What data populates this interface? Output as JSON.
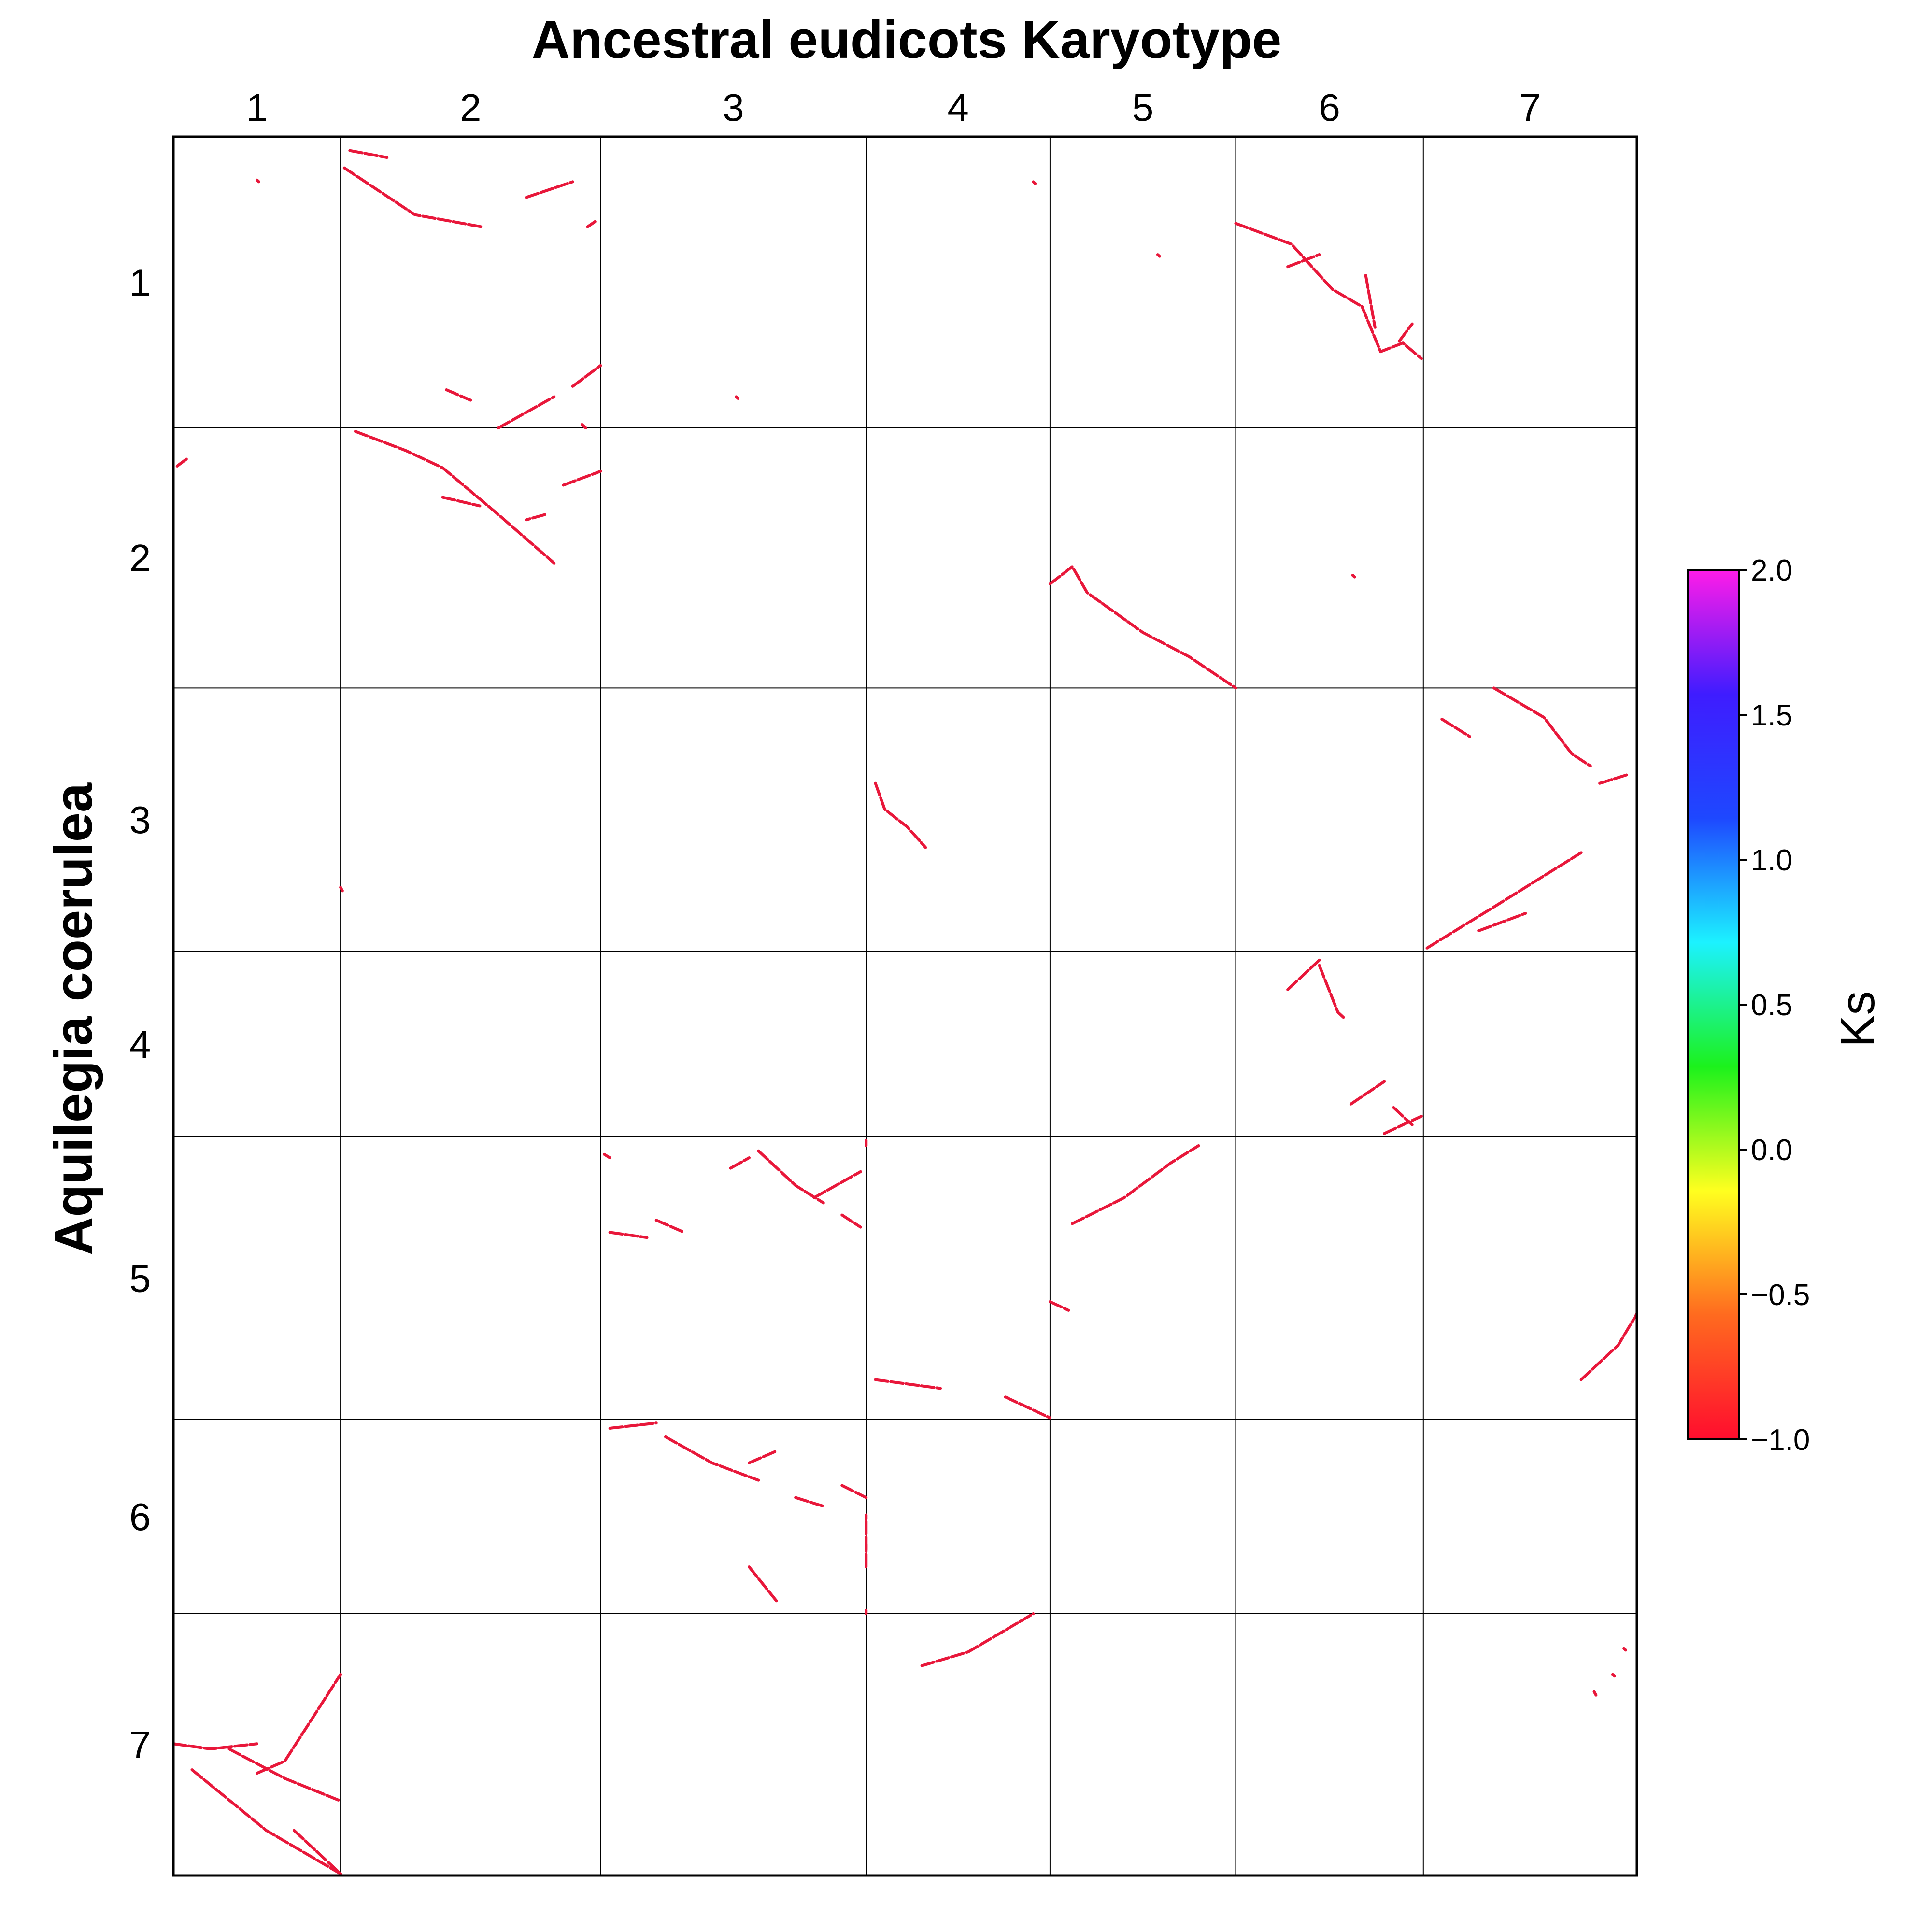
{
  "chart_data": {
    "type": "scatter",
    "title": "Ancestral eudicots Karyotype",
    "xlabel": "Ancestral eudicots Karyotype",
    "ylabel": "Aquilegia coerulea",
    "x_chromosomes": [
      "1",
      "2",
      "3",
      "4",
      "5",
      "6",
      "7"
    ],
    "y_chromosomes": [
      "1",
      "2",
      "3",
      "4",
      "5",
      "6",
      "7"
    ],
    "x_sizes": [
      90,
      140,
      143,
      99,
      100,
      101,
      115
    ],
    "y_sizes": [
      168,
      150,
      152,
      107,
      163,
      112,
      151
    ],
    "grid": true,
    "colorbar": {
      "label": "Ks",
      "range": [
        -1.0,
        2.0
      ],
      "ticks": [
        2.0,
        1.5,
        1.0,
        0.5,
        0.0,
        -0.5,
        -1.0
      ],
      "tick_labels": [
        "2.0",
        "1.5",
        "1.0",
        "0.5",
        "0.0",
        "−0.5",
        "−1.0"
      ],
      "colormap": [
        "#ff0d2e",
        "#ff6a1f",
        "#ffff1f",
        "#1cf21c",
        "#1cf2ff",
        "#1e48ff",
        "#3f1cff",
        "#ff1ce8"
      ]
    },
    "dot_color": "#e8173a",
    "ks_value_of_dots": -1.0,
    "synteny_segments": [
      {
        "cx": "1",
        "cy": "1",
        "points": [
          [
            45,
            25
          ],
          [
            46,
            26
          ]
        ]
      },
      {
        "cx": "2",
        "cy": "1",
        "points": [
          [
            2,
            18
          ],
          [
            40,
            45
          ],
          [
            76,
            52
          ]
        ]
      },
      {
        "cx": "2",
        "cy": "1",
        "points": [
          [
            5,
            8
          ],
          [
            25,
            12
          ]
        ]
      },
      {
        "cx": "2",
        "cy": "1",
        "points": [
          [
            100,
            35
          ],
          [
            125,
            26
          ]
        ]
      },
      {
        "cx": "2",
        "cy": "1",
        "points": [
          [
            133,
            52
          ],
          [
            137,
            49
          ]
        ]
      },
      {
        "cx": "2",
        "cy": "1",
        "points": [
          [
            57,
            146
          ],
          [
            70,
            152
          ]
        ]
      },
      {
        "cx": "2",
        "cy": "1",
        "points": [
          [
            85,
            168
          ],
          [
            115,
            150
          ]
        ]
      },
      {
        "cx": "2",
        "cy": "1",
        "points": [
          [
            125,
            144
          ],
          [
            140,
            132
          ]
        ]
      },
      {
        "cx": "2",
        "cy": "1",
        "points": [
          [
            130,
            166
          ],
          [
            132,
            168
          ]
        ]
      },
      {
        "cx": "3",
        "cy": "1",
        "points": [
          [
            73,
            150
          ],
          [
            74,
            151
          ]
        ]
      },
      {
        "cx": "4",
        "cy": "1",
        "points": [
          [
            90,
            26
          ],
          [
            91,
            27
          ]
        ]
      },
      {
        "cx": "5",
        "cy": "1",
        "points": [
          [
            58,
            68
          ],
          [
            59,
            69
          ]
        ]
      },
      {
        "cx": "6",
        "cy": "1",
        "points": [
          [
            0,
            50
          ],
          [
            30,
            62
          ],
          [
            52,
            88
          ],
          [
            68,
            98
          ],
          [
            78,
            124
          ],
          [
            90,
            119
          ],
          [
            100,
            128
          ]
        ]
      },
      {
        "cx": "6",
        "cy": "1",
        "points": [
          [
            28,
            75
          ],
          [
            45,
            68
          ]
        ]
      },
      {
        "cx": "6",
        "cy": "1",
        "points": [
          [
            70,
            80
          ],
          [
            75,
            110
          ]
        ]
      },
      {
        "cx": "6",
        "cy": "1",
        "points": [
          [
            88,
            118
          ],
          [
            95,
            108
          ]
        ]
      },
      {
        "cx": "1",
        "cy": "2",
        "points": [
          [
            2,
            22
          ],
          [
            7,
            18
          ]
        ]
      },
      {
        "cx": "2",
        "cy": "2",
        "points": [
          [
            8,
            2
          ],
          [
            35,
            13
          ],
          [
            55,
            23
          ],
          [
            85,
            50
          ],
          [
            115,
            78
          ]
        ]
      },
      {
        "cx": "2",
        "cy": "2",
        "points": [
          [
            55,
            40
          ],
          [
            75,
            45
          ]
        ]
      },
      {
        "cx": "2",
        "cy": "2",
        "points": [
          [
            120,
            33
          ],
          [
            140,
            25
          ]
        ]
      },
      {
        "cx": "2",
        "cy": "2",
        "points": [
          [
            110,
            50
          ],
          [
            100,
            53
          ]
        ]
      },
      {
        "cx": "5",
        "cy": "2",
        "points": [
          [
            0,
            90
          ],
          [
            12,
            80
          ],
          [
            20,
            95
          ],
          [
            50,
            118
          ],
          [
            75,
            132
          ],
          [
            100,
            150
          ]
        ]
      },
      {
        "cx": "6",
        "cy": "2",
        "points": [
          [
            63,
            85
          ],
          [
            64,
            86
          ]
        ]
      },
      {
        "cx": "2",
        "cy": "3",
        "points": [
          [
            0,
            115
          ],
          [
            1,
            117
          ]
        ]
      },
      {
        "cx": "4",
        "cy": "3",
        "points": [
          [
            5,
            55
          ],
          [
            10,
            70
          ],
          [
            22,
            80
          ],
          [
            32,
            92
          ]
        ]
      },
      {
        "cx": "7",
        "cy": "3",
        "points": [
          [
            10,
            18
          ],
          [
            25,
            28
          ]
        ]
      },
      {
        "cx": "7",
        "cy": "3",
        "points": [
          [
            38,
            0
          ],
          [
            65,
            17
          ],
          [
            80,
            38
          ],
          [
            90,
            45
          ]
        ]
      },
      {
        "cx": "7",
        "cy": "3",
        "points": [
          [
            95,
            55
          ],
          [
            110,
            50
          ]
        ]
      },
      {
        "cx": "7",
        "cy": "3",
        "points": [
          [
            2,
            150
          ],
          [
            40,
            125
          ],
          [
            85,
            95
          ]
        ]
      },
      {
        "cx": "7",
        "cy": "3",
        "points": [
          [
            30,
            140
          ],
          [
            55,
            130
          ]
        ]
      },
      {
        "cx": "6",
        "cy": "4",
        "points": [
          [
            28,
            22
          ],
          [
            45,
            5
          ]
        ]
      },
      {
        "cx": "6",
        "cy": "4",
        "points": [
          [
            45,
            8
          ],
          [
            55,
            35
          ],
          [
            58,
            38
          ]
        ]
      },
      {
        "cx": "6",
        "cy": "4",
        "points": [
          [
            62,
            88
          ],
          [
            80,
            75
          ]
        ]
      },
      {
        "cx": "6",
        "cy": "4",
        "points": [
          [
            85,
            90
          ],
          [
            95,
            100
          ]
        ]
      },
      {
        "cx": "6",
        "cy": "4",
        "points": [
          [
            80,
            105
          ],
          [
            100,
            95
          ]
        ]
      },
      {
        "cx": "3",
        "cy": "5",
        "points": [
          [
            2,
            10
          ],
          [
            5,
            12
          ]
        ]
      },
      {
        "cx": "3",
        "cy": "5",
        "points": [
          [
            5,
            55
          ],
          [
            25,
            58
          ]
        ]
      },
      {
        "cx": "3",
        "cy": "5",
        "points": [
          [
            30,
            48
          ],
          [
            45,
            55
          ]
        ]
      },
      {
        "cx": "3",
        "cy": "5",
        "points": [
          [
            70,
            18
          ],
          [
            80,
            12
          ]
        ]
      },
      {
        "cx": "3",
        "cy": "5",
        "points": [
          [
            85,
            8
          ],
          [
            105,
            28
          ],
          [
            120,
            38
          ]
        ]
      },
      {
        "cx": "3",
        "cy": "5",
        "points": [
          [
            115,
            35
          ],
          [
            140,
            20
          ]
        ]
      },
      {
        "cx": "3",
        "cy": "5",
        "points": [
          [
            145,
            5
          ],
          [
            160,
            2
          ]
        ]
      },
      {
        "cx": "3",
        "cy": "5",
        "points": [
          [
            130,
            45
          ],
          [
            140,
            52
          ]
        ]
      },
      {
        "cx": "5",
        "cy": "5",
        "points": [
          [
            12,
            50
          ],
          [
            40,
            35
          ],
          [
            65,
            15
          ],
          [
            80,
            5
          ]
        ]
      },
      {
        "cx": "5",
        "cy": "5",
        "points": [
          [
            0,
            95
          ],
          [
            10,
            100
          ]
        ]
      },
      {
        "cx": "4",
        "cy": "5",
        "points": [
          [
            5,
            140
          ],
          [
            40,
            145
          ]
        ]
      },
      {
        "cx": "4",
        "cy": "5",
        "points": [
          [
            75,
            150
          ],
          [
            105,
            162
          ]
        ]
      },
      {
        "cx": "7",
        "cy": "5",
        "points": [
          [
            85,
            140
          ],
          [
            105,
            120
          ],
          [
            125,
            102
          ]
        ]
      },
      {
        "cx": "3",
        "cy": "6",
        "points": [
          [
            5,
            5
          ],
          [
            30,
            2
          ]
        ]
      },
      {
        "cx": "3",
        "cy": "6",
        "points": [
          [
            35,
            10
          ],
          [
            60,
            25
          ],
          [
            85,
            35
          ]
        ]
      },
      {
        "cx": "3",
        "cy": "6",
        "points": [
          [
            80,
            25
          ],
          [
            95,
            18
          ]
        ]
      },
      {
        "cx": "3",
        "cy": "6",
        "points": [
          [
            105,
            45
          ],
          [
            120,
            50
          ]
        ]
      },
      {
        "cx": "3",
        "cy": "6",
        "points": [
          [
            130,
            38
          ],
          [
            160,
            45
          ]
        ]
      },
      {
        "cx": "3",
        "cy": "6",
        "points": [
          [
            150,
            75
          ],
          [
            175,
            55
          ]
        ]
      },
      {
        "cx": "3",
        "cy": "6",
        "points": [
          [
            80,
            85
          ],
          [
            95,
            105
          ]
        ]
      },
      {
        "cx": "3",
        "cy": "6",
        "points": [
          [
            160,
            85
          ],
          [
            175,
            72
          ]
        ]
      },
      {
        "cx": "3",
        "cy": "6",
        "points": [
          [
            190,
            110
          ],
          [
            191,
            112
          ]
        ]
      },
      {
        "cx": "4",
        "cy": "7",
        "points": [
          [
            30,
            30
          ],
          [
            55,
            22
          ],
          [
            90,
            0
          ]
        ]
      },
      {
        "cx": "7",
        "cy": "7",
        "points": [
          [
            92,
            45
          ],
          [
            93,
            47
          ]
        ]
      },
      {
        "cx": "7",
        "cy": "7",
        "points": [
          [
            102,
            35
          ],
          [
            103,
            36
          ]
        ]
      },
      {
        "cx": "7",
        "cy": "7",
        "points": [
          [
            108,
            20
          ],
          [
            109,
            21
          ]
        ]
      },
      {
        "cx": "1",
        "cy": "7",
        "points": [
          [
            0,
            75
          ],
          [
            20,
            78
          ],
          [
            45,
            75
          ]
        ]
      },
      {
        "cx": "1",
        "cy": "7",
        "points": [
          [
            30,
            78
          ],
          [
            60,
            95
          ],
          [
            90,
            108
          ]
        ]
      },
      {
        "cx": "1",
        "cy": "7",
        "points": [
          [
            45,
            92
          ],
          [
            60,
            85
          ],
          [
            75,
            60
          ],
          [
            90,
            35
          ]
        ]
      },
      {
        "cx": "1",
        "cy": "7",
        "points": [
          [
            10,
            90
          ],
          [
            50,
            125
          ],
          [
            90,
            150
          ]
        ]
      },
      {
        "cx": "1",
        "cy": "7",
        "points": [
          [
            65,
            125
          ],
          [
            90,
            150
          ]
        ]
      }
    ]
  }
}
